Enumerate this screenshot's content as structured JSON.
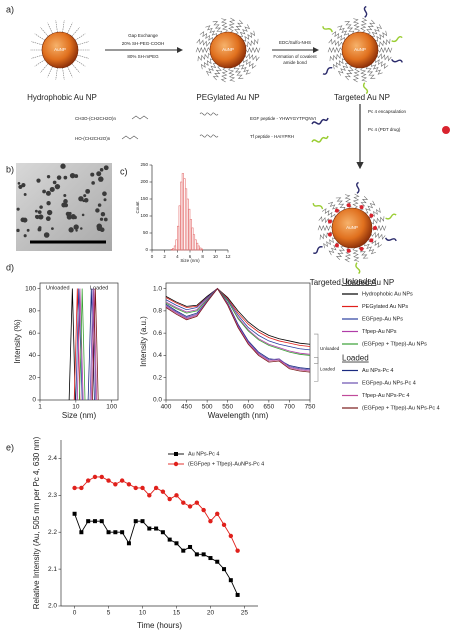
{
  "panel_labels": [
    "a)",
    "b)",
    "c)",
    "d)",
    "e)"
  ],
  "schematic": {
    "particles": [
      "Hydrophobic Au NP",
      "PEGylated Au NP",
      "Targeted Au NP",
      "Targeted, loaded Au NP"
    ],
    "core_label": "AuNP",
    "step1": [
      "Gap Exchange",
      "20% SH-PEG-COOH",
      "80% SH-mPEG"
    ],
    "step2": [
      "EDC/Sulfo-NHS",
      "Formation of covalent",
      "amide bond"
    ],
    "step3": "Pc 4 encapsulation",
    "structures": [
      "CH3O-(CH2CH2O)n",
      "HO-(CH2CH2O)n"
    ],
    "peptides": [
      "EGF peptide - YHWYGYTPQNVI",
      "Tf peptide - HAIYPRH"
    ],
    "drug": "Pc 4 (PDT drug)"
  },
  "chart_data": [
    {
      "type": "histogram",
      "xlabel": "Size (nm)",
      "ylabel": "Count",
      "color": "#e57373",
      "bins": [
        3.0,
        3.25,
        3.5,
        3.75,
        4.0,
        4.25,
        4.5,
        4.75,
        5.0,
        5.25,
        5.5,
        5.75,
        6.0,
        6.25,
        6.5,
        6.75,
        7.0,
        7.25,
        7.5,
        7.75,
        8.0
      ],
      "values": [
        2,
        5,
        12,
        30,
        70,
        130,
        200,
        225,
        210,
        180,
        150,
        120,
        90,
        65,
        45,
        30,
        20,
        12,
        6,
        3
      ],
      "xlim": [
        0,
        12
      ],
      "xticks": [
        0,
        2,
        4,
        6,
        8,
        10,
        12
      ],
      "ylim": [
        0,
        250
      ],
      "yticks": [
        0,
        50,
        100,
        150,
        200,
        250
      ]
    },
    {
      "type": "line",
      "xlabel": "Size (nm)",
      "ylabel": "Intensity (%)",
      "xscale": "log",
      "xlim": [
        1,
        150
      ],
      "xticks": [
        1,
        10,
        100
      ],
      "ylim": [
        0,
        105
      ],
      "yticks": [
        0,
        20,
        40,
        60,
        80,
        100
      ],
      "annotations": [
        "Unloaded",
        "Loaded"
      ],
      "series": [
        {
          "color": "#000000",
          "x": [
            6.5,
            7.2,
            8,
            8.8,
            9.6
          ],
          "values": [
            0,
            50,
            100,
            50,
            0
          ]
        },
        {
          "color": "#e0201b",
          "x": [
            9,
            10,
            11,
            12,
            13
          ],
          "values": [
            0,
            50,
            100,
            50,
            0
          ]
        },
        {
          "color": "#2b3fa0",
          "x": [
            10,
            11,
            12,
            13.5,
            15
          ],
          "values": [
            0,
            50,
            100,
            50,
            0
          ]
        },
        {
          "color": "#b03ca8",
          "x": [
            11,
            12,
            13,
            14.5,
            16
          ],
          "values": [
            0,
            50,
            100,
            50,
            0
          ]
        },
        {
          "color": "#3aa035",
          "x": [
            12.5,
            14,
            15,
            16.5,
            18
          ],
          "values": [
            0,
            50,
            100,
            50,
            0
          ]
        },
        {
          "color": "#1a2a80",
          "x": [
            22,
            24.5,
            27,
            30,
            33
          ],
          "values": [
            0,
            50,
            100,
            50,
            0
          ]
        },
        {
          "color": "#6a4fb0",
          "x": [
            25,
            27.5,
            30,
            33,
            36
          ],
          "values": [
            0,
            50,
            100,
            50,
            0
          ]
        },
        {
          "color": "#c04a9a",
          "x": [
            27,
            29.5,
            32,
            35,
            38
          ],
          "values": [
            0,
            50,
            100,
            50,
            0
          ]
        },
        {
          "color": "#7a1a1a",
          "x": [
            29,
            32,
            35,
            38.5,
            42
          ],
          "values": [
            0,
            50,
            100,
            50,
            0
          ]
        }
      ]
    },
    {
      "type": "line",
      "xlabel": "Wavelength (nm)",
      "ylabel": "Intensity (a.u.)",
      "xlim": [
        400,
        750
      ],
      "xticks": [
        400,
        450,
        500,
        550,
        600,
        650,
        700,
        750
      ],
      "ylim": [
        0,
        1.05
      ],
      "yticks": [
        {
          "value": 0,
          "label": "0.0"
        },
        0.2,
        0.4,
        0.6,
        0.8,
        {
          "value": 1,
          "label": "1.0"
        }
      ],
      "annotations": [
        "Unloaded",
        "Loaded"
      ],
      "x": [
        400,
        425,
        450,
        475,
        500,
        525,
        550,
        575,
        600,
        625,
        650,
        675,
        700,
        725,
        750
      ],
      "groups": [
        {
          "name": "Unloaded",
          "series": [
            {
              "name": "Hydrophobic Au NPs",
              "color": "#000000",
              "values": [
                0.93,
                0.88,
                0.84,
                0.85,
                0.93,
                1.0,
                0.92,
                0.8,
                0.7,
                0.63,
                0.58,
                0.55,
                0.53,
                0.51,
                0.5
              ]
            },
            {
              "name": "PEGylated Au NPs",
              "color": "#e0201b",
              "values": [
                0.92,
                0.87,
                0.83,
                0.84,
                0.92,
                1.0,
                0.91,
                0.78,
                0.68,
                0.61,
                0.56,
                0.53,
                0.51,
                0.49,
                0.48
              ]
            },
            {
              "name": "EGFpep-Au NPs",
              "color": "#2b3fa0",
              "values": [
                0.9,
                0.85,
                0.81,
                0.83,
                0.92,
                1.0,
                0.9,
                0.76,
                0.65,
                0.58,
                0.53,
                0.5,
                0.48,
                0.46,
                0.45
              ]
            },
            {
              "name": "Tfpep-Au NPs",
              "color": "#b03ca8",
              "values": [
                0.88,
                0.83,
                0.79,
                0.81,
                0.91,
                1.0,
                0.89,
                0.74,
                0.63,
                0.55,
                0.5,
                0.47,
                0.44,
                0.42,
                0.41
              ]
            },
            {
              "name": "(EGFpep + Tfpep)-Au NPs",
              "color": "#3aa035",
              "values": [
                0.87,
                0.82,
                0.78,
                0.8,
                0.9,
                1.0,
                0.89,
                0.73,
                0.62,
                0.54,
                0.49,
                0.46,
                0.43,
                0.41,
                0.4
              ]
            }
          ]
        },
        {
          "name": "Loaded",
          "series": [
            {
              "name": "Au NPs-Pc 4",
              "color": "#1a2a80",
              "values": [
                0.86,
                0.8,
                0.75,
                0.78,
                0.89,
                1.0,
                0.87,
                0.68,
                0.53,
                0.43,
                0.37,
                0.36,
                0.31,
                0.29,
                0.28
              ]
            },
            {
              "name": "EGFpep-Au NPs-Pc 4",
              "color": "#6a4fb0",
              "values": [
                0.85,
                0.79,
                0.74,
                0.77,
                0.89,
                1.0,
                0.86,
                0.67,
                0.52,
                0.42,
                0.36,
                0.37,
                0.3,
                0.28,
                0.27
              ]
            },
            {
              "name": "Tfpep-Au NPs-Pc 4",
              "color": "#c04a9a",
              "values": [
                0.84,
                0.78,
                0.73,
                0.76,
                0.88,
                1.0,
                0.86,
                0.66,
                0.51,
                0.41,
                0.35,
                0.36,
                0.29,
                0.27,
                0.26
              ]
            },
            {
              "name": "(EGFpep + Tfpep)-Au NPs-Pc 4",
              "color": "#7a1a1a",
              "values": [
                0.83,
                0.77,
                0.72,
                0.75,
                0.88,
                1.0,
                0.85,
                0.65,
                0.5,
                0.4,
                0.34,
                0.35,
                0.28,
                0.26,
                0.25
              ]
            }
          ]
        }
      ]
    },
    {
      "type": "line",
      "xlabel": "Time (hours)",
      "ylabel": "Relative Intensity (Au, 505 nm per Pc 4, 630 nm)",
      "xlim": [
        -2,
        27
      ],
      "xticks": [
        0,
        5,
        10,
        15,
        20,
        25
      ],
      "ylim": [
        2.0,
        2.45
      ],
      "yticks": [
        {
          "value": 2.0,
          "label": "2.0"
        },
        2.1,
        2.2,
        2.3,
        2.4
      ],
      "x": [
        0,
        1,
        2,
        3,
        4,
        5,
        6,
        7,
        8,
        9,
        10,
        11,
        12,
        13,
        14,
        15,
        16,
        17,
        18,
        19,
        20,
        21,
        22,
        23,
        24
      ],
      "series": [
        {
          "name": "Au NPs-Pc 4",
          "color": "#000000",
          "marker": "square",
          "values": [
            2.25,
            2.2,
            2.23,
            2.23,
            2.23,
            2.2,
            2.2,
            2.2,
            2.17,
            2.23,
            2.23,
            2.21,
            2.21,
            2.2,
            2.18,
            2.17,
            2.15,
            2.16,
            2.14,
            2.14,
            2.13,
            2.12,
            2.1,
            2.07,
            2.03
          ]
        },
        {
          "name": "(EGFpep + Tfpep)-AuNPs-Pc 4",
          "color": "#e0201b",
          "marker": "circle",
          "values": [
            2.32,
            2.32,
            2.34,
            2.35,
            2.35,
            2.34,
            2.33,
            2.34,
            2.33,
            2.32,
            2.32,
            2.3,
            2.32,
            2.31,
            2.29,
            2.3,
            2.28,
            2.27,
            2.28,
            2.26,
            2.23,
            2.25,
            2.22,
            2.19,
            2.15
          ]
        }
      ]
    }
  ]
}
